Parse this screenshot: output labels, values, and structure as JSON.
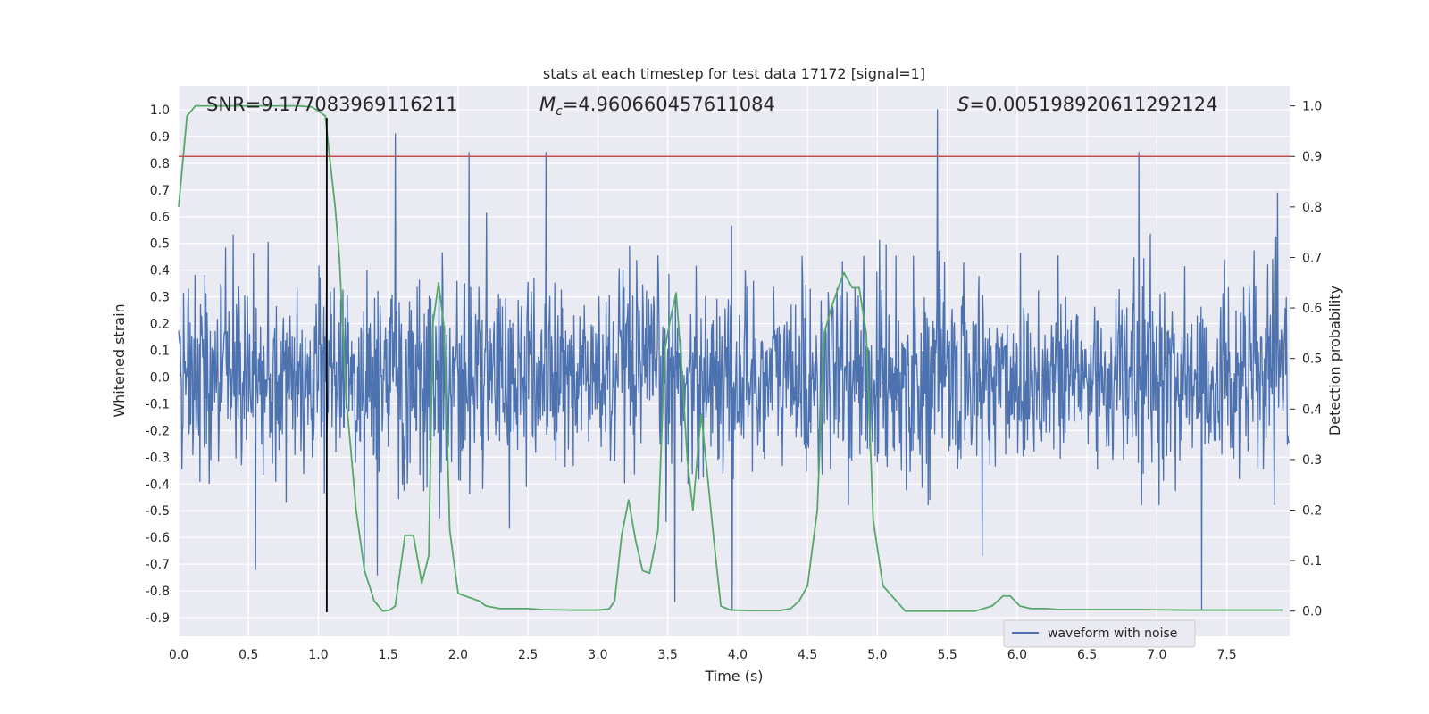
{
  "chart_data": {
    "type": "line",
    "title": "stats at each timestep for test data 17172 [signal=1]",
    "xlabel": "Time (s)",
    "ylabel_left": "Whitened strain",
    "ylabel_right": "Detection probability",
    "xlim": [
      0.0,
      7.95
    ],
    "ylim_left": [
      -0.97,
      1.09
    ],
    "ylim_right": [
      -0.05,
      1.04
    ],
    "x_ticks": [
      0.0,
      0.5,
      1.0,
      1.5,
      2.0,
      2.5,
      3.0,
      3.5,
      4.0,
      4.5,
      5.0,
      5.5,
      6.0,
      6.5,
      7.0,
      7.5
    ],
    "y_left_ticks": [
      1.0,
      0.9,
      0.8,
      0.7,
      0.6,
      0.5,
      0.4,
      0.3,
      0.2,
      0.1,
      0.0,
      -0.1,
      -0.2,
      -0.3,
      -0.4,
      -0.5,
      -0.6,
      -0.7,
      -0.8,
      -0.9
    ],
    "y_right_ticks": [
      1.0,
      0.9,
      0.8,
      0.7,
      0.6,
      0.5,
      0.4,
      0.3,
      0.2,
      0.1,
      0.0
    ],
    "grid": true,
    "legend_position": "lower-right",
    "annotations": {
      "snr": "SNR=9.177083969116211",
      "mc_symbol": "M",
      "mc_sub": "c",
      "mc_value": "=4.960660457611084",
      "s_symbol": "S",
      "s_value": "=0.005198920611292124"
    },
    "series": [
      {
        "name": "waveform with noise",
        "axis": "left",
        "color": "#4c72b0",
        "note_generated": "noise",
        "sample_rate": 256,
        "spikes": [
          {
            "x": 1.06,
            "y": 0.33
          },
          {
            "x": 1.55,
            "y": 0.91
          },
          {
            "x": 2.08,
            "y": 0.84
          },
          {
            "x": 2.63,
            "y": 0.84
          },
          {
            "x": 3.55,
            "y": -0.84
          },
          {
            "x": 3.96,
            "y": -0.87
          },
          {
            "x": 5.43,
            "y": 1.0
          },
          {
            "x": 6.87,
            "y": 0.84
          },
          {
            "x": 7.32,
            "y": -0.87
          },
          {
            "x": 0.55,
            "y": -0.72
          },
          {
            "x": 1.33,
            "y": -0.73
          },
          {
            "x": 1.42,
            "y": -0.74
          },
          {
            "x": 5.75,
            "y": -0.67
          }
        ]
      },
      {
        "name": "detection probability",
        "axis": "right",
        "color": "#55a868",
        "x": [
          0.0,
          0.06,
          0.12,
          0.3,
          0.5,
          0.7,
          0.85,
          0.95,
          1.0,
          1.05,
          1.08,
          1.12,
          1.15,
          1.2,
          1.27,
          1.33,
          1.4,
          1.46,
          1.51,
          1.55,
          1.62,
          1.68,
          1.74,
          1.79,
          1.82,
          1.86,
          1.9,
          1.94,
          2.0,
          2.1,
          2.15,
          2.2,
          2.3,
          2.5,
          2.6,
          2.8,
          3.0,
          3.08,
          3.12,
          3.17,
          3.22,
          3.27,
          3.32,
          3.37,
          3.43,
          3.48,
          3.52,
          3.56,
          3.6,
          3.64,
          3.68,
          3.71,
          3.74,
          3.78,
          3.83,
          3.88,
          3.95,
          4.1,
          4.3,
          4.38,
          4.44,
          4.5,
          4.57,
          4.62,
          4.67,
          4.72,
          4.76,
          4.82,
          4.87,
          4.92,
          4.97,
          5.04,
          5.2,
          5.5,
          5.7,
          5.82,
          5.9,
          5.95,
          6.02,
          6.1,
          6.2,
          6.3,
          6.5,
          6.7,
          6.9,
          7.2,
          7.4,
          7.6,
          7.9
        ],
        "y": [
          0.8,
          0.98,
          1.0,
          1.0,
          1.0,
          1.0,
          1.0,
          0.998,
          0.99,
          0.98,
          0.9,
          0.8,
          0.7,
          0.42,
          0.2,
          0.08,
          0.02,
          0.0,
          0.002,
          0.01,
          0.15,
          0.15,
          0.055,
          0.11,
          0.57,
          0.65,
          0.56,
          0.16,
          0.035,
          0.025,
          0.02,
          0.01,
          0.005,
          0.005,
          0.003,
          0.002,
          0.002,
          0.004,
          0.02,
          0.15,
          0.22,
          0.14,
          0.08,
          0.075,
          0.16,
          0.52,
          0.58,
          0.63,
          0.48,
          0.3,
          0.2,
          0.3,
          0.39,
          0.28,
          0.14,
          0.01,
          0.002,
          0.001,
          0.001,
          0.005,
          0.02,
          0.05,
          0.2,
          0.55,
          0.6,
          0.64,
          0.67,
          0.64,
          0.64,
          0.55,
          0.18,
          0.05,
          0.0,
          0.0,
          0.0,
          0.01,
          0.03,
          0.03,
          0.01,
          0.005,
          0.005,
          0.003,
          0.003,
          0.003,
          0.003,
          0.002,
          0.002,
          0.002,
          0.002
        ]
      },
      {
        "name": "threshold",
        "axis": "right",
        "color": "#c44e52",
        "y": 0.9
      },
      {
        "name": "marker",
        "axis": "left",
        "color": "#000000",
        "x": 1.06,
        "y_range": [
          -0.88,
          0.97
        ]
      }
    ],
    "legend": [
      {
        "label": "waveform with noise",
        "color": "#4c72b0"
      }
    ]
  }
}
